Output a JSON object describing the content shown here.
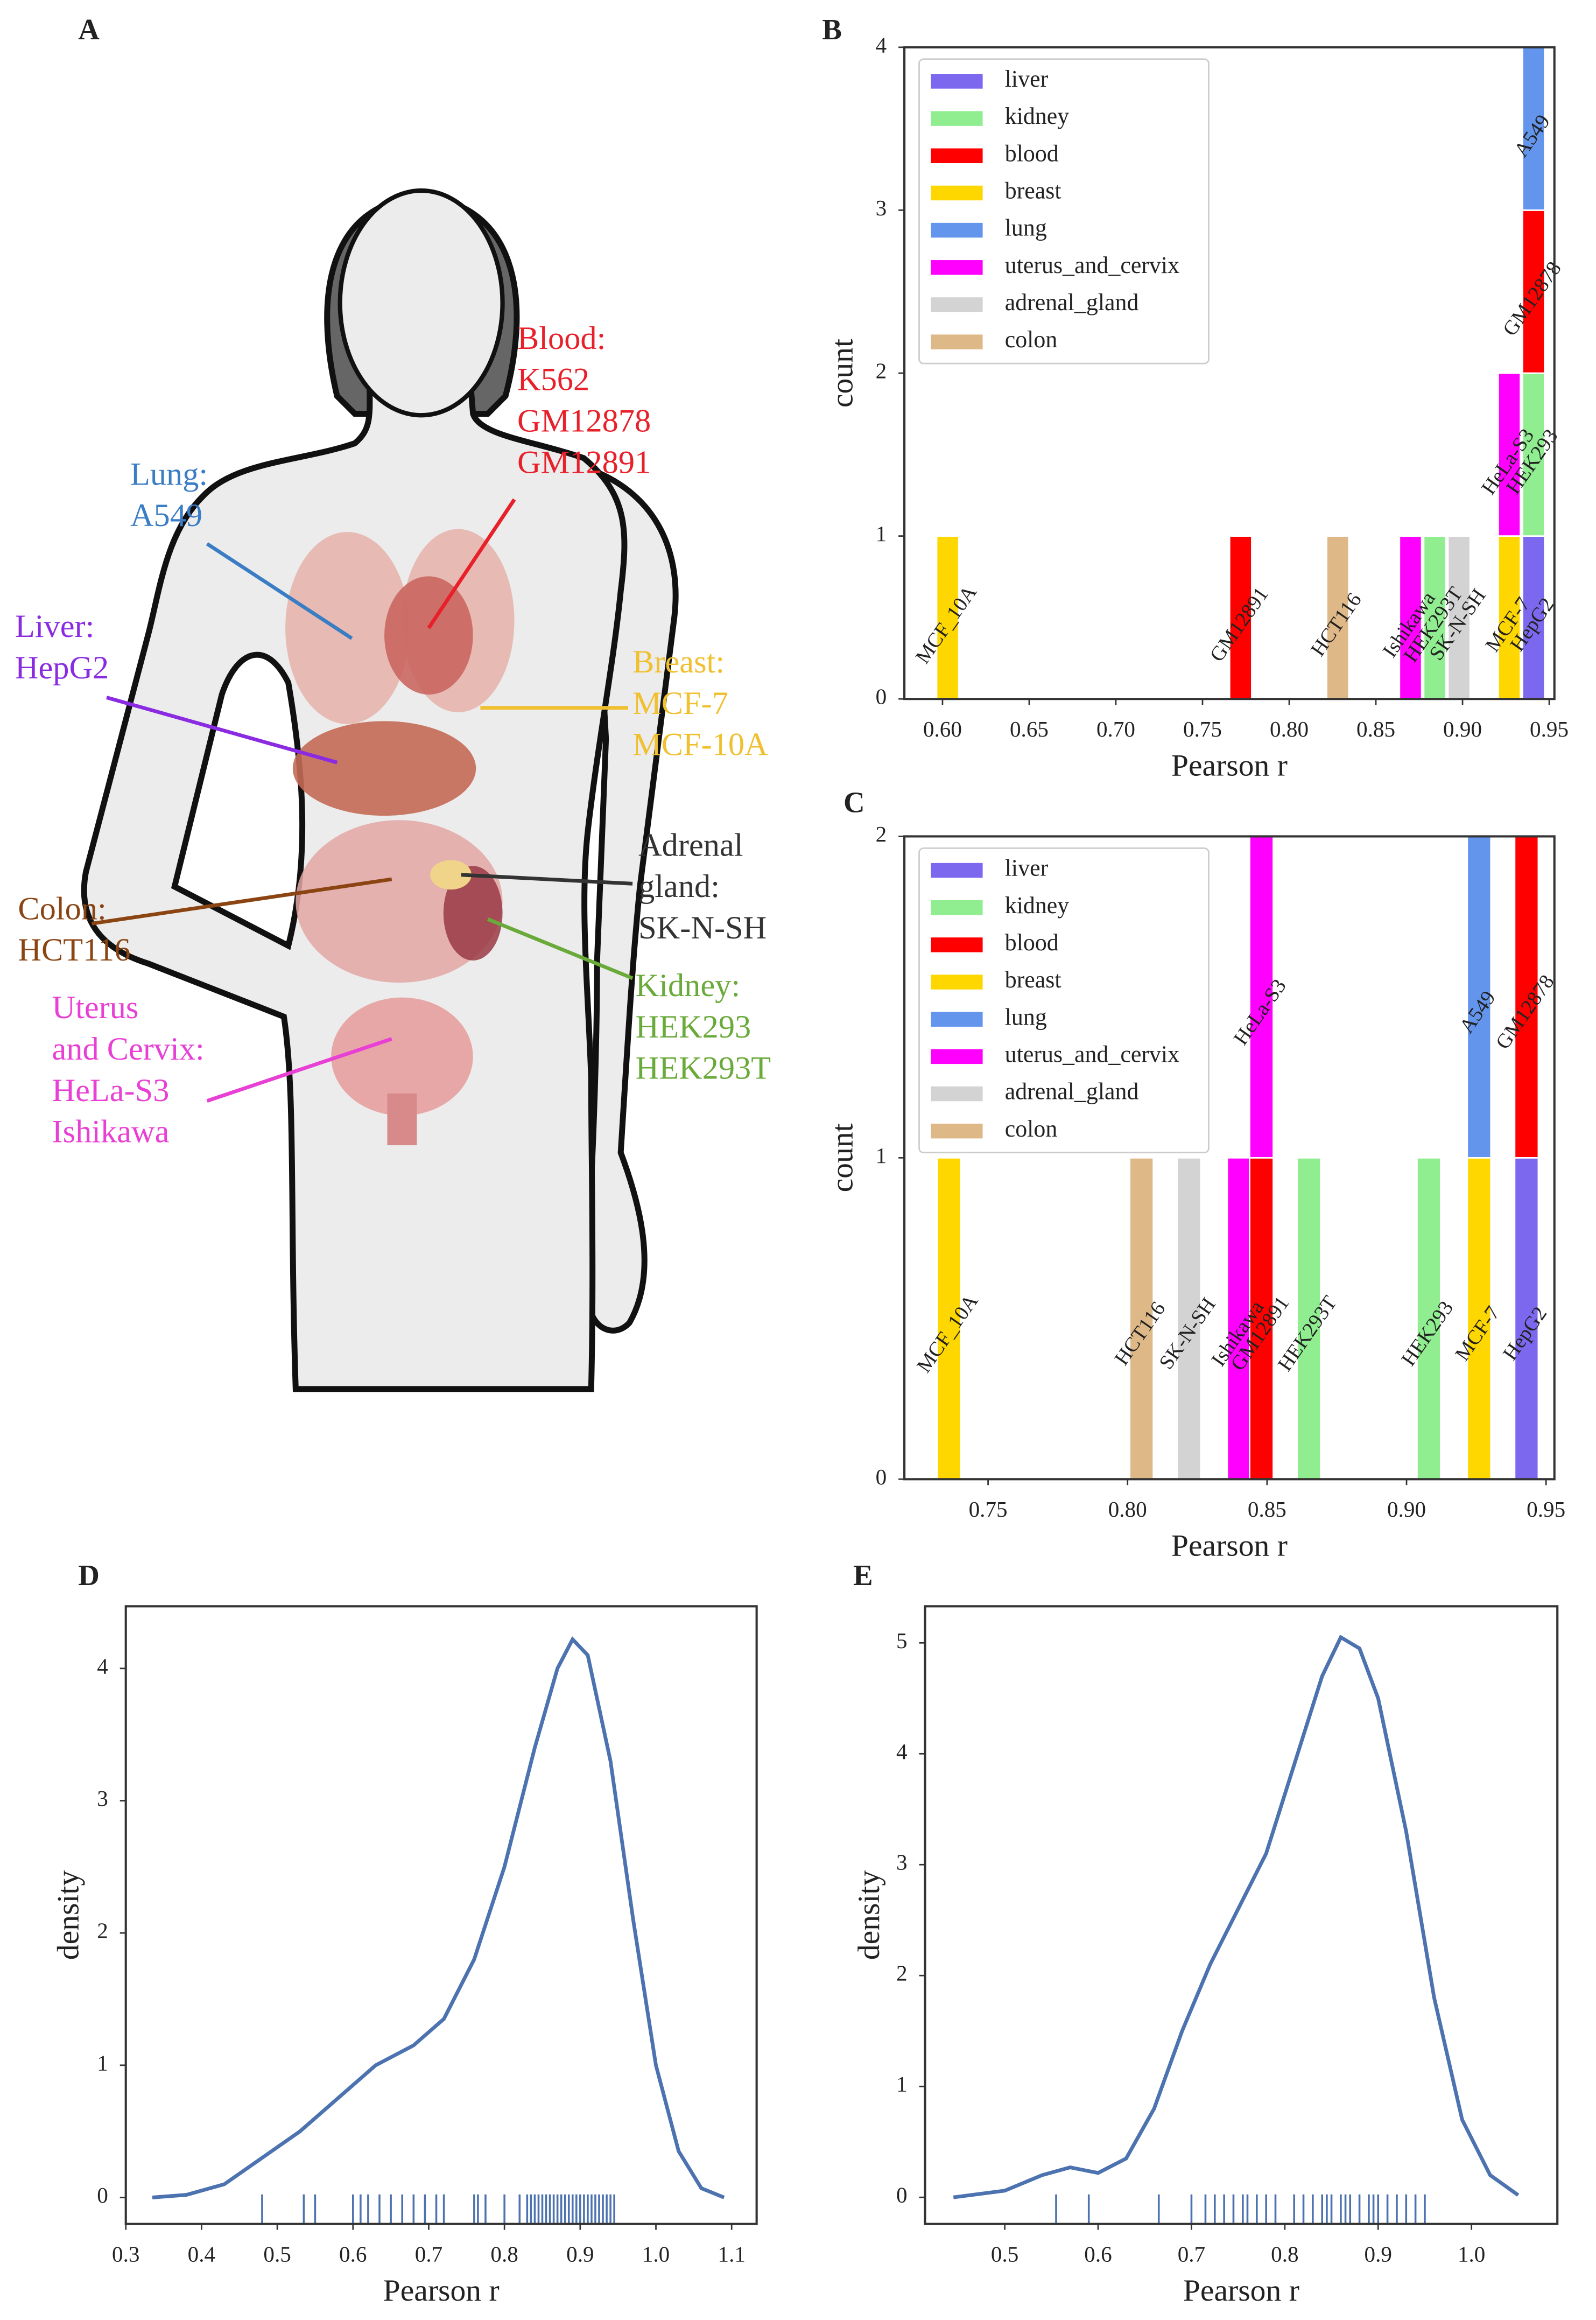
{
  "anatomy": {
    "panel_label": "A",
    "labels": [
      {
        "lines": [
          "Blood:",
          "K562",
          "GM12878",
          "GM12891"
        ],
        "color": "#e8202a"
      },
      {
        "lines": [
          "Lung:",
          "A549"
        ],
        "color": "#3b7dc4"
      },
      {
        "lines": [
          "Liver:",
          "HepG2"
        ],
        "color": "#8a2be2"
      },
      {
        "lines": [
          "Breast:",
          "MCF-7",
          "MCF-10A"
        ],
        "color": "#f0c030"
      },
      {
        "lines": [
          "Adrenal",
          "gland:",
          "SK-N-SH"
        ],
        "color": "#333333"
      },
      {
        "lines": [
          "Kidney:",
          "HEK293",
          "HEK293T"
        ],
        "color": "#6aaa3a"
      },
      {
        "lines": [
          "Colon:",
          "HCT116"
        ],
        "color": "#8b4513"
      },
      {
        "lines": [
          "Uterus",
          "and Cervix:",
          "HeLa-S3",
          "Ishikawa"
        ],
        "color": "#e83fd5"
      }
    ]
  },
  "chart_data": [
    {
      "type": "stacked_histogram",
      "panel_label": "B",
      "xlabel": "Pearson r",
      "ylabel": "count",
      "xlim": [
        0.578,
        0.953
      ],
      "ylim": [
        0,
        4
      ],
      "xticks": [
        {
          "value": 0.6,
          "label": "0.60"
        },
        0.65,
        {
          "value": 0.7,
          "label": "0.70"
        },
        0.75,
        {
          "value": 0.8,
          "label": "0.80"
        },
        0.85,
        {
          "value": 0.9,
          "label": "0.90"
        },
        0.95
      ],
      "yticks": [
        0,
        1,
        2,
        3,
        4
      ],
      "bin_width": 0.0128,
      "legend": "upper left",
      "series": [
        {
          "name": "liver",
          "color": "#7b68ee"
        },
        {
          "name": "kidney",
          "color": "#90ee90"
        },
        {
          "name": "blood",
          "color": "#ff0000"
        },
        {
          "name": "breast",
          "color": "#ffd700"
        },
        {
          "name": "lung",
          "color": "#6495ed"
        },
        {
          "name": "uterus_and_cervix",
          "color": "#ff00ff"
        },
        {
          "name": "adrenal_gland",
          "color": "#d3d3d3"
        },
        {
          "name": "colon",
          "color": "#deb887"
        }
      ],
      "bars": [
        {
          "label": "MCF_10A",
          "tissue": "breast",
          "x": 0.603,
          "count": 1
        },
        {
          "label": "GM12891",
          "tissue": "blood",
          "x": 0.772,
          "count": 1
        },
        {
          "label": "HCT116",
          "tissue": "colon",
          "x": 0.828,
          "count": 1
        },
        {
          "label": "Ishikawa",
          "tissue": "uterus_and_cervix",
          "x": 0.87,
          "count": 1
        },
        {
          "label": "HEK293T",
          "tissue": "kidney",
          "x": 0.884,
          "count": 1
        },
        {
          "label": "SK-N-SH",
          "tissue": "adrenal_gland",
          "x": 0.898,
          "count": 1
        },
        {
          "label": "MCF-7",
          "tissue": "breast",
          "x": 0.927,
          "count": 1
        },
        {
          "label": "HeLa-S3",
          "tissue": "uterus_and_cervix",
          "x": 0.927,
          "count": 1
        },
        {
          "label": "HepG2",
          "tissue": "liver",
          "x": 0.941,
          "count": 1
        },
        {
          "label": "HEK293",
          "tissue": "kidney",
          "x": 0.941,
          "count": 1
        },
        {
          "label": "GM12878",
          "tissue": "blood",
          "x": 0.941,
          "count": 1
        },
        {
          "label": "A549",
          "tissue": "lung",
          "x": 0.941,
          "count": 1
        }
      ]
    },
    {
      "type": "stacked_histogram",
      "panel_label": "C",
      "xlabel": "Pearson r",
      "ylabel": "count",
      "xlim": [
        0.72,
        0.953
      ],
      "ylim": [
        0,
        2
      ],
      "xticks": [
        0.75,
        {
          "value": 0.8,
          "label": "0.80"
        },
        0.85,
        {
          "value": 0.9,
          "label": "0.90"
        },
        0.95
      ],
      "yticks": [
        0,
        1,
        2
      ],
      "bin_width": 0.0085,
      "legend": "upper left",
      "series": [
        {
          "name": "liver",
          "color": "#7b68ee"
        },
        {
          "name": "kidney",
          "color": "#90ee90"
        },
        {
          "name": "blood",
          "color": "#ff0000"
        },
        {
          "name": "breast",
          "color": "#ffd700"
        },
        {
          "name": "lung",
          "color": "#6495ed"
        },
        {
          "name": "uterus_and_cervix",
          "color": "#ff00ff"
        },
        {
          "name": "adrenal_gland",
          "color": "#d3d3d3"
        },
        {
          "name": "colon",
          "color": "#deb887"
        }
      ],
      "bars": [
        {
          "label": "MCF_10A",
          "tissue": "breast",
          "x": 0.736,
          "count": 1
        },
        {
          "label": "HCT116",
          "tissue": "colon",
          "x": 0.805,
          "count": 1
        },
        {
          "label": "SK-N-SH",
          "tissue": "adrenal_gland",
          "x": 0.822,
          "count": 1
        },
        {
          "label": "Ishikawa",
          "tissue": "uterus_and_cervix",
          "x": 0.84,
          "count": 1
        },
        {
          "label": "GM12891",
          "tissue": "blood",
          "x": 0.848,
          "count": 1
        },
        {
          "label": "HeLa-S3",
          "tissue": "uterus_and_cervix",
          "x": 0.848,
          "count": 1
        },
        {
          "label": "HEK293T",
          "tissue": "kidney",
          "x": 0.865,
          "count": 1
        },
        {
          "label": "HEK293",
          "tissue": "kidney",
          "x": 0.908,
          "count": 1
        },
        {
          "label": "MCF-7",
          "tissue": "breast",
          "x": 0.926,
          "count": 1
        },
        {
          "label": "A549",
          "tissue": "lung",
          "x": 0.926,
          "count": 1
        },
        {
          "label": "HepG2",
          "tissue": "liver",
          "x": 0.943,
          "count": 1
        },
        {
          "label": "GM12878",
          "tissue": "blood",
          "x": 0.943,
          "count": 1
        }
      ]
    },
    {
      "type": "kde",
      "panel_label": "D",
      "xlabel": "Pearson r",
      "ylabel": "density",
      "color": "#4c72b0",
      "xlim": [
        0.3,
        1.133
      ],
      "ylim": [
        -0.2,
        4.47
      ],
      "xticks": [
        0.3,
        0.4,
        0.5,
        0.6,
        0.7,
        0.8,
        0.9,
        {
          "value": 1.0,
          "label": "1.0"
        },
        1.1
      ],
      "yticks": [
        0,
        1,
        2,
        3,
        4
      ],
      "x": [
        0.335,
        0.38,
        0.43,
        0.48,
        0.53,
        0.58,
        0.63,
        0.68,
        0.72,
        0.76,
        0.8,
        0.84,
        0.87,
        0.89,
        0.91,
        0.94,
        0.97,
        1.0,
        1.03,
        1.06,
        1.09
      ],
      "values": [
        0,
        0.02,
        0.1,
        0.3,
        0.5,
        0.75,
        1.0,
        1.15,
        1.35,
        1.8,
        2.5,
        3.4,
        4.0,
        4.22,
        4.1,
        3.3,
        2.1,
        1.0,
        0.35,
        0.07,
        0
      ],
      "rug": [
        0.48,
        0.535,
        0.55,
        0.6,
        0.61,
        0.62,
        0.635,
        0.65,
        0.665,
        0.68,
        0.695,
        0.71,
        0.72,
        0.76,
        0.765,
        0.775,
        0.8,
        0.82,
        0.83,
        0.835,
        0.84,
        0.845,
        0.85,
        0.855,
        0.86,
        0.865,
        0.87,
        0.875,
        0.88,
        0.885,
        0.89,
        0.895,
        0.9,
        0.905,
        0.91,
        0.915,
        0.92,
        0.925,
        0.93,
        0.935,
        0.94,
        0.945
      ]
    },
    {
      "type": "kde",
      "panel_label": "E",
      "xlabel": "Pearson r",
      "ylabel": "density",
      "color": "#4c72b0",
      "xlim": [
        0.4146,
        1.092
      ],
      "ylim": [
        -0.24,
        5.33
      ],
      "xticks": [
        0.5,
        0.6,
        0.7,
        0.8,
        0.9,
        {
          "value": 1.0,
          "label": "1.0"
        }
      ],
      "yticks": [
        0,
        1,
        2,
        3,
        4,
        5
      ],
      "x": [
        0.445,
        0.5,
        0.54,
        0.57,
        0.6,
        0.63,
        0.66,
        0.69,
        0.72,
        0.75,
        0.78,
        0.81,
        0.84,
        0.86,
        0.88,
        0.9,
        0.93,
        0.96,
        0.99,
        1.02,
        1.05
      ],
      "values": [
        0,
        0.06,
        0.2,
        0.27,
        0.22,
        0.35,
        0.8,
        1.5,
        2.1,
        2.6,
        3.1,
        3.9,
        4.7,
        5.05,
        4.95,
        4.5,
        3.3,
        1.8,
        0.7,
        0.2,
        0.02
      ],
      "rug": [
        0.555,
        0.59,
        0.665,
        0.7,
        0.715,
        0.725,
        0.735,
        0.745,
        0.755,
        0.76,
        0.77,
        0.78,
        0.79,
        0.81,
        0.82,
        0.83,
        0.84,
        0.845,
        0.85,
        0.86,
        0.865,
        0.87,
        0.88,
        0.89,
        0.895,
        0.9,
        0.91,
        0.92,
        0.93,
        0.94,
        0.95
      ]
    }
  ]
}
